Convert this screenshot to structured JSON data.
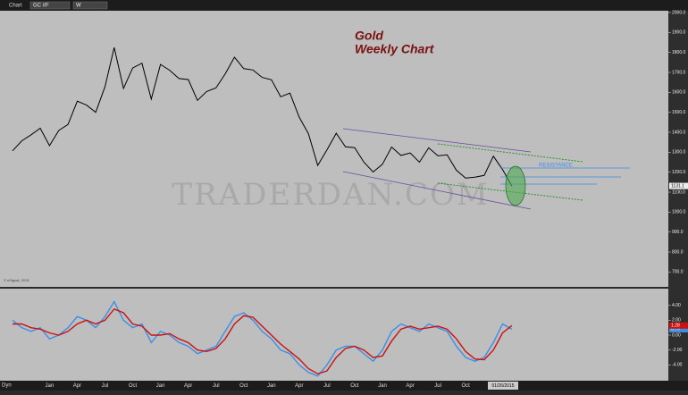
{
  "toolbar": {
    "title": "Chart",
    "symbol": "GC #F",
    "interval": "W",
    "mode": "Dyn"
  },
  "chart_data": [
    {
      "type": "line",
      "title": "Gold",
      "subtitle": "Weekly Chart",
      "watermark": "TRADERDAN.COM",
      "annotation": "RESISTANCE",
      "copyright": "© eSignal, 2015",
      "cursor_date": "01/26/2015",
      "categories": [
        null,
        null,
        null,
        null,
        "Jan",
        null,
        null,
        "Apr",
        null,
        null,
        "Jul",
        null,
        null,
        "Oct",
        null,
        null,
        "Jan",
        null,
        null,
        "Apr",
        null,
        null,
        "Jul",
        null,
        null,
        "Oct",
        null,
        null,
        "Jan",
        null,
        null,
        "Apr",
        null,
        null,
        "Jul",
        null,
        null,
        "Oct",
        null,
        null,
        "Jan",
        null,
        null,
        "Apr",
        null,
        null,
        "Jul",
        null,
        null,
        "Oct",
        null,
        null,
        null,
        null,
        null
      ],
      "color": "#000000",
      "values": [
        1307,
        1357,
        1387,
        1420,
        1333,
        1409,
        1439,
        1556,
        1536,
        1500,
        1628,
        1825,
        1620,
        1722,
        1746,
        1566,
        1740,
        1711,
        1669,
        1664,
        1560,
        1604,
        1622,
        1692,
        1776,
        1719,
        1712,
        1675,
        1663,
        1578,
        1596,
        1476,
        1393,
        1234,
        1312,
        1395,
        1327,
        1323,
        1250,
        1201,
        1240,
        1326,
        1284,
        1296,
        1250,
        1322,
        1282,
        1287,
        1210,
        1171,
        1175,
        1184,
        1280,
        1213,
        1131.1
      ],
      "ylim": [
        630,
        2000
      ],
      "yticks": [
        {
          "value": 700,
          "label": "700.0"
        },
        {
          "value": 800,
          "label": "800.0"
        },
        {
          "value": 900,
          "label": "900.0"
        },
        {
          "value": 1000,
          "label": "1000.0"
        },
        {
          "value": 1100,
          "label": "1100.0"
        },
        {
          "value": 1200,
          "label": "1200.0"
        },
        {
          "value": 1300,
          "label": "1300.0"
        },
        {
          "value": 1400,
          "label": "1400.0"
        },
        {
          "value": 1500,
          "label": "1500.0"
        },
        {
          "value": 1600,
          "label": "1600.0"
        },
        {
          "value": 1700,
          "label": "1700.0"
        },
        {
          "value": 1800,
          "label": "1800.0"
        },
        {
          "value": 1900,
          "label": "1900.0"
        },
        {
          "value": 2000,
          "label": "2000.0"
        }
      ]
    },
    {
      "type": "line",
      "series": [
        {
          "color": "#3a8fe8",
          "values": [
            2,
            1,
            0.5,
            1,
            -0.5,
            0,
            1,
            2.5,
            2,
            1,
            2.5,
            4.5,
            2,
            1,
            1.5,
            -1,
            0.5,
            0,
            -1,
            -1.5,
            -2.5,
            -2,
            -1.5,
            0.5,
            2.5,
            3,
            2,
            0.5,
            -0.5,
            -2,
            -2.5,
            -4,
            -5,
            -5.5,
            -4,
            -2,
            -1.5,
            -1.5,
            -2.5,
            -3.5,
            -2,
            0.5,
            1.5,
            1,
            0.5,
            1.5,
            1,
            0.5,
            -1.5,
            -3,
            -3.5,
            -3,
            -1,
            1.5,
            0.79
          ]
        },
        {
          "color": "#cc1111",
          "values": [
            1.5,
            1.5,
            1,
            0.8,
            0.3,
            0,
            0.5,
            1.5,
            2,
            1.5,
            2,
            3.5,
            3,
            1.5,
            1.2,
            0,
            0,
            0.2,
            -0.5,
            -1,
            -2,
            -2.2,
            -1.8,
            -0.5,
            1.5,
            2.6,
            2.4,
            1.2,
            0,
            -1.2,
            -2.2,
            -3.2,
            -4.5,
            -5.2,
            -4.8,
            -3,
            -1.8,
            -1.5,
            -2,
            -3,
            -2.8,
            -0.8,
            0.8,
            1.2,
            0.8,
            1,
            1.2,
            0.8,
            -0.5,
            -2.2,
            -3.2,
            -3.3,
            -2,
            0.3,
            1.28
          ]
        }
      ],
      "ylim": [
        -6,
        6
      ],
      "yticks": [
        {
          "value": -4,
          "label": "-4.00"
        },
        {
          "value": -2,
          "label": "-2.00"
        },
        {
          "value": 0,
          "label": "0.00"
        },
        {
          "value": 2,
          "label": "2.00"
        },
        {
          "value": 4,
          "label": "4.00"
        }
      ]
    }
  ]
}
